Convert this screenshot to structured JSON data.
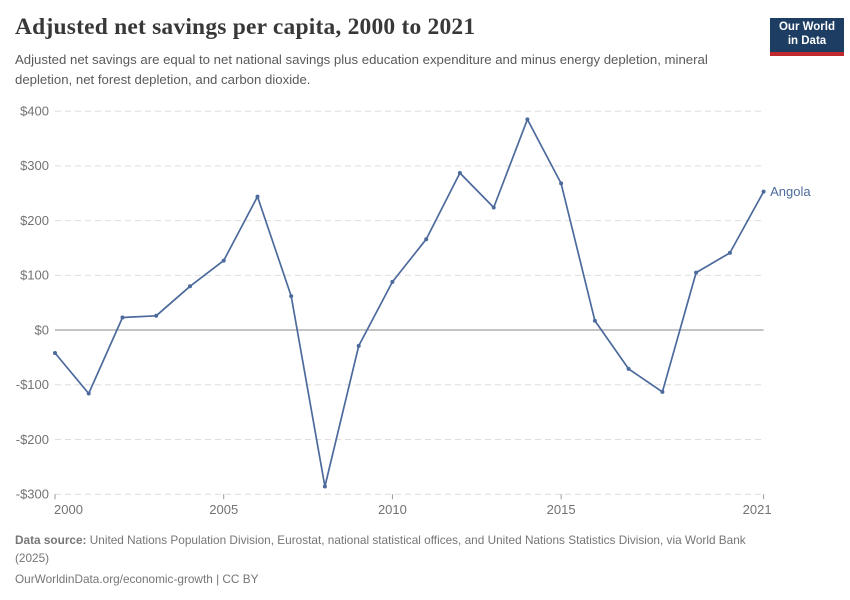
{
  "header": {
    "title": "Adjusted net savings per capita, 2000 to 2021",
    "subtitle": "Adjusted net savings are equal to net national savings plus education expenditure and minus energy depletion, mineral depletion, net forest depletion, and carbon dioxide."
  },
  "logo": {
    "line1": "Our World",
    "line2": "in Data",
    "bg_color": "#1d3d63",
    "bar_color": "#c0292e"
  },
  "chart_data": {
    "type": "line",
    "title": "Adjusted net savings per capita, 2000 to 2021",
    "x": [
      2000,
      2001,
      2002,
      2003,
      2004,
      2005,
      2006,
      2007,
      2008,
      2009,
      2010,
      2011,
      2012,
      2013,
      2014,
      2015,
      2016,
      2017,
      2018,
      2019,
      2020,
      2021
    ],
    "series": [
      {
        "name": "Angola",
        "values": [
          -42,
          -116,
          23,
          26,
          80,
          127,
          244,
          62,
          -286,
          -29,
          88,
          166,
          287,
          224,
          385,
          268,
          17,
          -71,
          -113,
          105,
          141,
          253
        ]
      }
    ],
    "unit": "$",
    "ylim": [
      -300,
      400
    ],
    "yticks": [
      {
        "value": 400,
        "label": "$400"
      },
      {
        "value": 300,
        "label": "$300"
      },
      {
        "value": 200,
        "label": "$200"
      },
      {
        "value": 100,
        "label": "$100"
      },
      {
        "value": 0,
        "label": "$0"
      },
      {
        "value": -100,
        "label": "-$100"
      },
      {
        "value": -200,
        "label": "-$200"
      },
      {
        "value": -300,
        "label": "-$300"
      }
    ],
    "xticks": [
      {
        "value": 2000,
        "label": "2000"
      },
      {
        "value": 2005,
        "label": "2005"
      },
      {
        "value": 2010,
        "label": "2010"
      },
      {
        "value": 2015,
        "label": "2015"
      },
      {
        "value": 2021,
        "label": "2021"
      }
    ],
    "grid": "horizontal-dashed",
    "zero_line": true,
    "legend_position": "end-of-line",
    "end_label": "Angola"
  },
  "colors": {
    "line": "#4c6a9c",
    "grid": "#dedede",
    "zero_line": "#b0b0b0",
    "tick": "#999999",
    "axis_text": "#737373",
    "series_label": "#4c6a9c"
  },
  "footer": {
    "data_source_label": "Data source:",
    "data_source_text": " United Nations Population Division, Eurostat, national statistical offices, and United Nations Statistics Division, via World Bank",
    "data_source_year": "(2025)",
    "citation": "OurWorldinData.org/economic-growth | CC BY"
  }
}
